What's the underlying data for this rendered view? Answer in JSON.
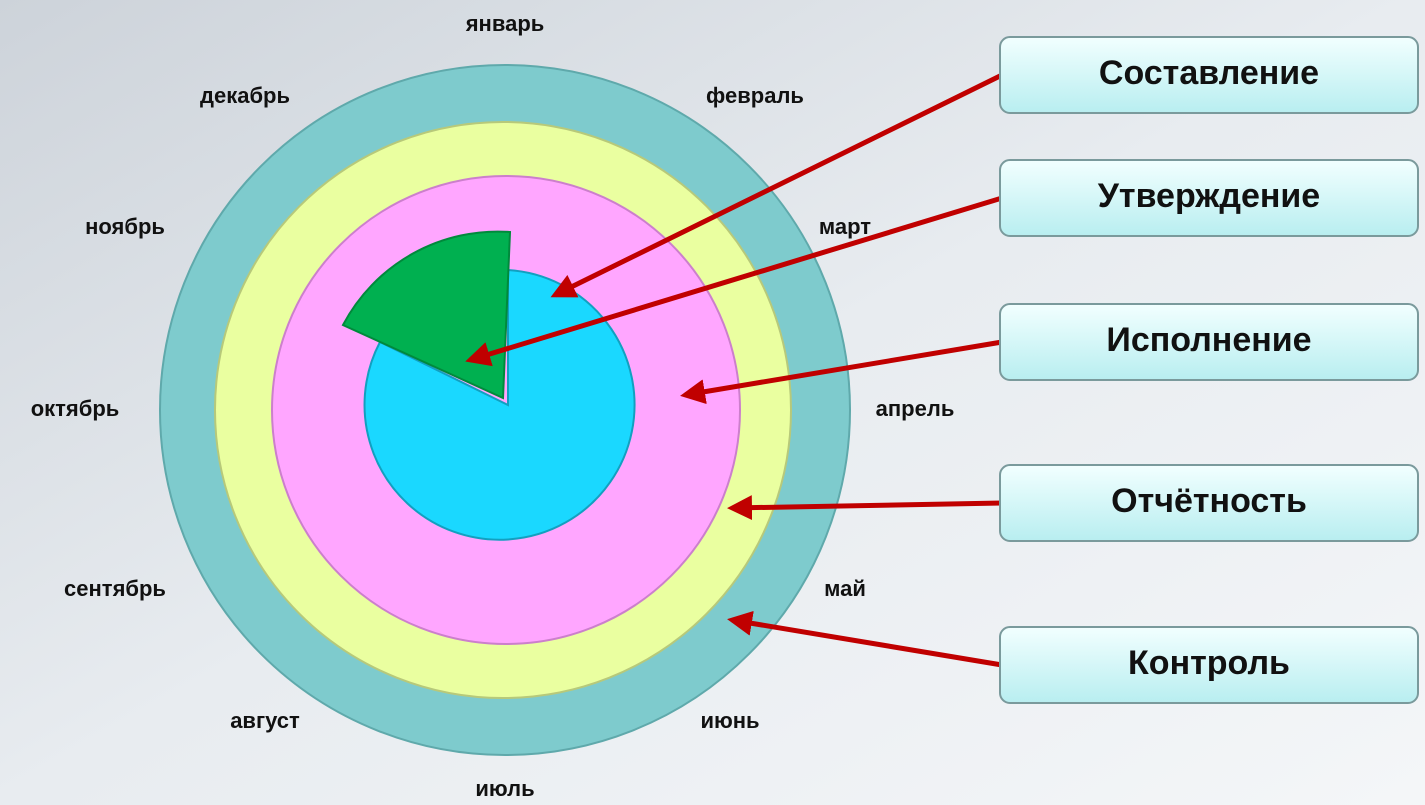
{
  "months": [
    "январь",
    "февраль",
    "март",
    "апрель",
    "май",
    "июнь",
    "июль",
    "август",
    "сентябрь",
    "октябрь",
    "ноябрь",
    "декабрь"
  ],
  "stages": [
    "Составление",
    "Утверждение",
    "Исполнение",
    "Отчётность",
    "Контроль"
  ]
}
